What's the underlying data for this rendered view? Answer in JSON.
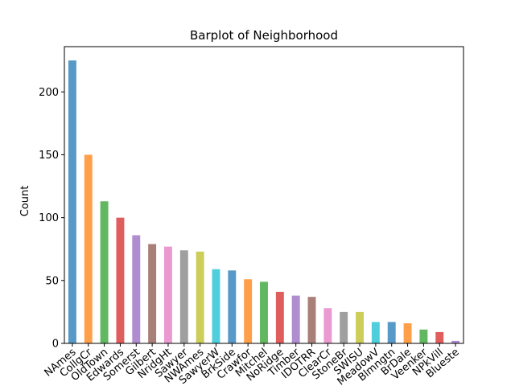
{
  "chart_data": {
    "type": "bar",
    "title": "Barplot of Neighborhood",
    "xlabel": "",
    "ylabel": "Count",
    "ylim": [
      0,
      236
    ],
    "yticks": [
      0,
      50,
      100,
      150,
      200
    ],
    "grid": false,
    "legend": "none",
    "categories": [
      "NAmes",
      "CollgCr",
      "OldTown",
      "Edwards",
      "Somerst",
      "Gilbert",
      "NridgHt",
      "Sawyer",
      "NWAmes",
      "SawyerW",
      "BrkSide",
      "Crawfor",
      "Mitchel",
      "NoRidge",
      "Timber",
      "IDOTRR",
      "ClearCr",
      "StoneBr",
      "SWISU",
      "MeadowV",
      "Blmngtn",
      "BrDale",
      "Veenker",
      "NPkVill",
      "Blueste"
    ],
    "values": [
      225,
      150,
      113,
      100,
      86,
      79,
      77,
      74,
      73,
      59,
      58,
      51,
      49,
      41,
      38,
      37,
      28,
      25,
      25,
      17,
      17,
      16,
      11,
      9,
      2
    ],
    "colors": [
      "#1f77b4",
      "#ff7f0e",
      "#2ca02c",
      "#d62728",
      "#9467bd",
      "#8c564b",
      "#e377c2",
      "#7f7f7f",
      "#bcbd22",
      "#17becf"
    ]
  }
}
